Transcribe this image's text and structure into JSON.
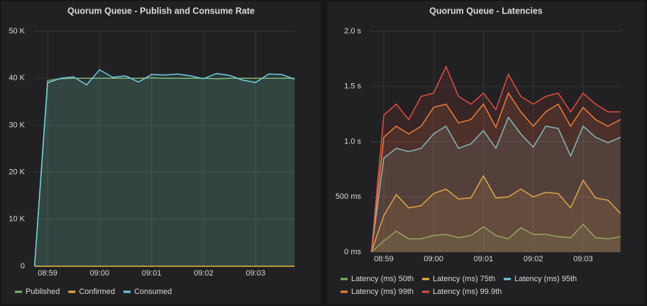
{
  "chart_data": [
    {
      "type": "line",
      "title": "Quorum Queue - Publish and Consume Rate",
      "x": [
        538.75,
        539,
        539.25,
        539.5,
        539.75,
        540,
        540.25,
        540.5,
        540.75,
        541,
        541.25,
        541.5,
        541.75,
        542,
        542.25,
        542.5,
        542.75,
        543,
        543.25,
        543.5,
        543.75
      ],
      "xlim": [
        538.74,
        543.76
      ],
      "xticks": [
        {
          "value": 539,
          "label": "08:59"
        },
        {
          "value": 540,
          "label": "09:00"
        },
        {
          "value": 541,
          "label": "09:01"
        },
        {
          "value": 542,
          "label": "09:02"
        },
        {
          "value": 543,
          "label": "09:03"
        }
      ],
      "ylim": [
        0,
        50000
      ],
      "yticks": [
        0,
        {
          "value": 10000,
          "label": "10 K"
        },
        {
          "value": 20000,
          "label": "20 K"
        },
        {
          "value": 30000,
          "label": "30 K"
        },
        {
          "value": 40000,
          "label": "40 K"
        },
        {
          "value": 50000,
          "label": "50 K"
        }
      ],
      "grid": true,
      "fill": true,
      "legend_position": "bottom",
      "series": [
        {
          "name": "Published",
          "color": "#7eb26d",
          "values": [
            0,
            39500,
            39900,
            40000,
            40000,
            40000,
            40000,
            40000,
            40000,
            40100,
            40000,
            40000,
            40000,
            40000,
            39900,
            40000,
            40000,
            40000,
            40000,
            40000,
            40000
          ]
        },
        {
          "name": "Confirmed",
          "color": "#eab839",
          "values": [
            0,
            0,
            0,
            0,
            0,
            0,
            0,
            0,
            0,
            0,
            0,
            0,
            0,
            0,
            0,
            0,
            0,
            0,
            0,
            0,
            0
          ]
        },
        {
          "name": "Consumed",
          "color": "#6ed0e0",
          "values": [
            0,
            39000,
            40000,
            40300,
            38600,
            41800,
            40200,
            40500,
            39200,
            40800,
            40700,
            40900,
            40500,
            39900,
            41000,
            40600,
            39600,
            39100,
            40900,
            40800,
            39800
          ]
        }
      ]
    },
    {
      "type": "line",
      "title": "Quorum Queue - Latencies",
      "x": [
        538.75,
        539,
        539.25,
        539.5,
        539.75,
        540,
        540.25,
        540.5,
        540.75,
        541,
        541.25,
        541.5,
        541.75,
        542,
        542.25,
        542.5,
        542.75,
        543,
        543.25,
        543.5,
        543.75
      ],
      "xlim": [
        538.73,
        543.77
      ],
      "xticks": [
        {
          "value": 539,
          "label": "08:59"
        },
        {
          "value": 540,
          "label": "09:00"
        },
        {
          "value": 541,
          "label": "09:01"
        },
        {
          "value": 542,
          "label": "09:02"
        },
        {
          "value": 543,
          "label": "09:03"
        }
      ],
      "ylim": [
        0,
        2000
      ],
      "yticks": [
        {
          "value": 0,
          "label": "0 ms"
        },
        {
          "value": 500,
          "label": "500 ms"
        },
        {
          "value": 1000,
          "label": "1.0 s"
        },
        {
          "value": 1500,
          "label": "1.5 s"
        },
        {
          "value": 2000,
          "label": "2.0 s"
        }
      ],
      "grid": true,
      "fill": true,
      "legend_position": "bottom",
      "series": [
        {
          "name": "Latency (ms) 50th",
          "color": "#7eb26d",
          "values": [
            0,
            100,
            190,
            120,
            120,
            150,
            160,
            130,
            150,
            230,
            150,
            120,
            220,
            160,
            160,
            140,
            130,
            250,
            130,
            120,
            140
          ]
        },
        {
          "name": "Latency (ms) 75th",
          "color": "#eab839",
          "values": [
            0,
            330,
            520,
            400,
            420,
            530,
            570,
            480,
            490,
            690,
            490,
            500,
            570,
            500,
            540,
            530,
            400,
            650,
            490,
            470,
            350
          ]
        },
        {
          "name": "Latency (ms) 95th",
          "color": "#6ed0e0",
          "values": [
            0,
            850,
            940,
            910,
            940,
            1070,
            1140,
            940,
            980,
            1100,
            940,
            1220,
            1070,
            950,
            1140,
            1120,
            870,
            1140,
            1040,
            990,
            1040
          ]
        },
        {
          "name": "Latency (ms) 99th",
          "color": "#ef843c",
          "values": [
            0,
            1040,
            1140,
            1070,
            1140,
            1310,
            1340,
            1170,
            1200,
            1340,
            1130,
            1440,
            1270,
            1140,
            1270,
            1340,
            1140,
            1310,
            1200,
            1140,
            1200
          ]
        },
        {
          "name": "Latency (ms) 99.9th",
          "color": "#e24d42",
          "values": [
            0,
            1240,
            1340,
            1200,
            1410,
            1440,
            1680,
            1410,
            1340,
            1440,
            1290,
            1610,
            1410,
            1340,
            1410,
            1440,
            1270,
            1440,
            1340,
            1270,
            1270
          ]
        }
      ]
    }
  ]
}
